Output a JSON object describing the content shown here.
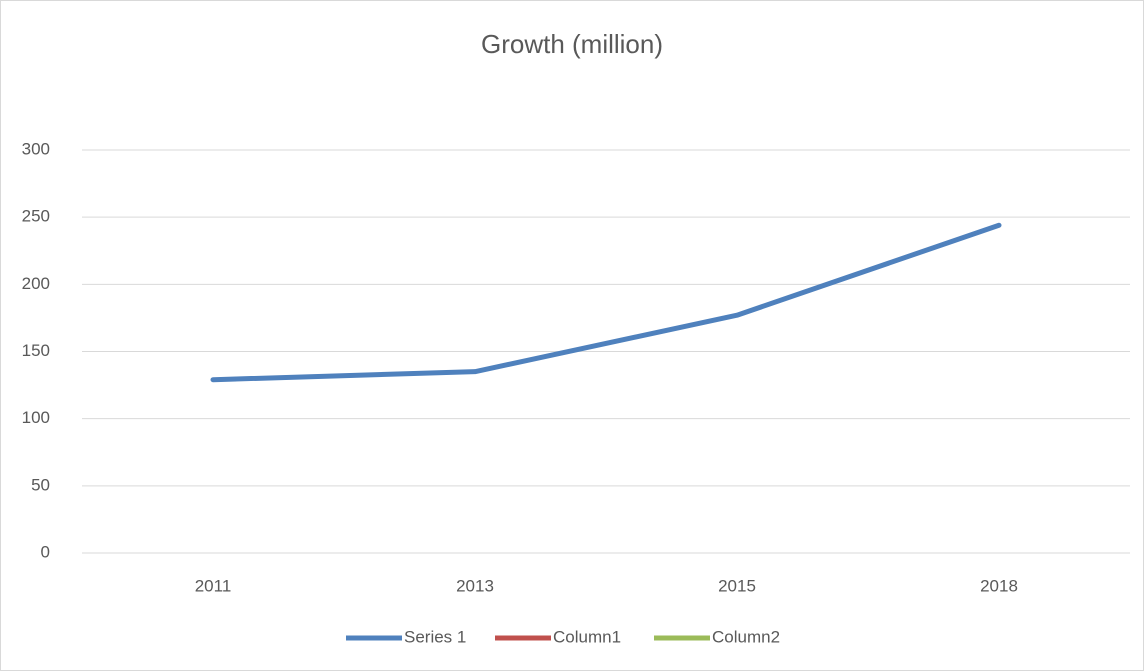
{
  "chart_data": {
    "type": "line",
    "title": "Growth (million)",
    "categories": [
      "2011",
      "2013",
      "2015",
      "2018"
    ],
    "series": [
      {
        "name": "Series 1",
        "color": "#4f81bd",
        "values": [
          129,
          135,
          177,
          244
        ]
      },
      {
        "name": "Column1",
        "color": "#c0504d",
        "values": [
          null,
          null,
          null,
          null
        ]
      },
      {
        "name": "Column2",
        "color": "#9bbb59",
        "values": [
          null,
          null,
          null,
          null
        ]
      }
    ],
    "ylim": [
      0,
      300
    ],
    "yticks": [
      0,
      50,
      100,
      150,
      200,
      250,
      300
    ],
    "grid": true,
    "legend": "bottom"
  }
}
